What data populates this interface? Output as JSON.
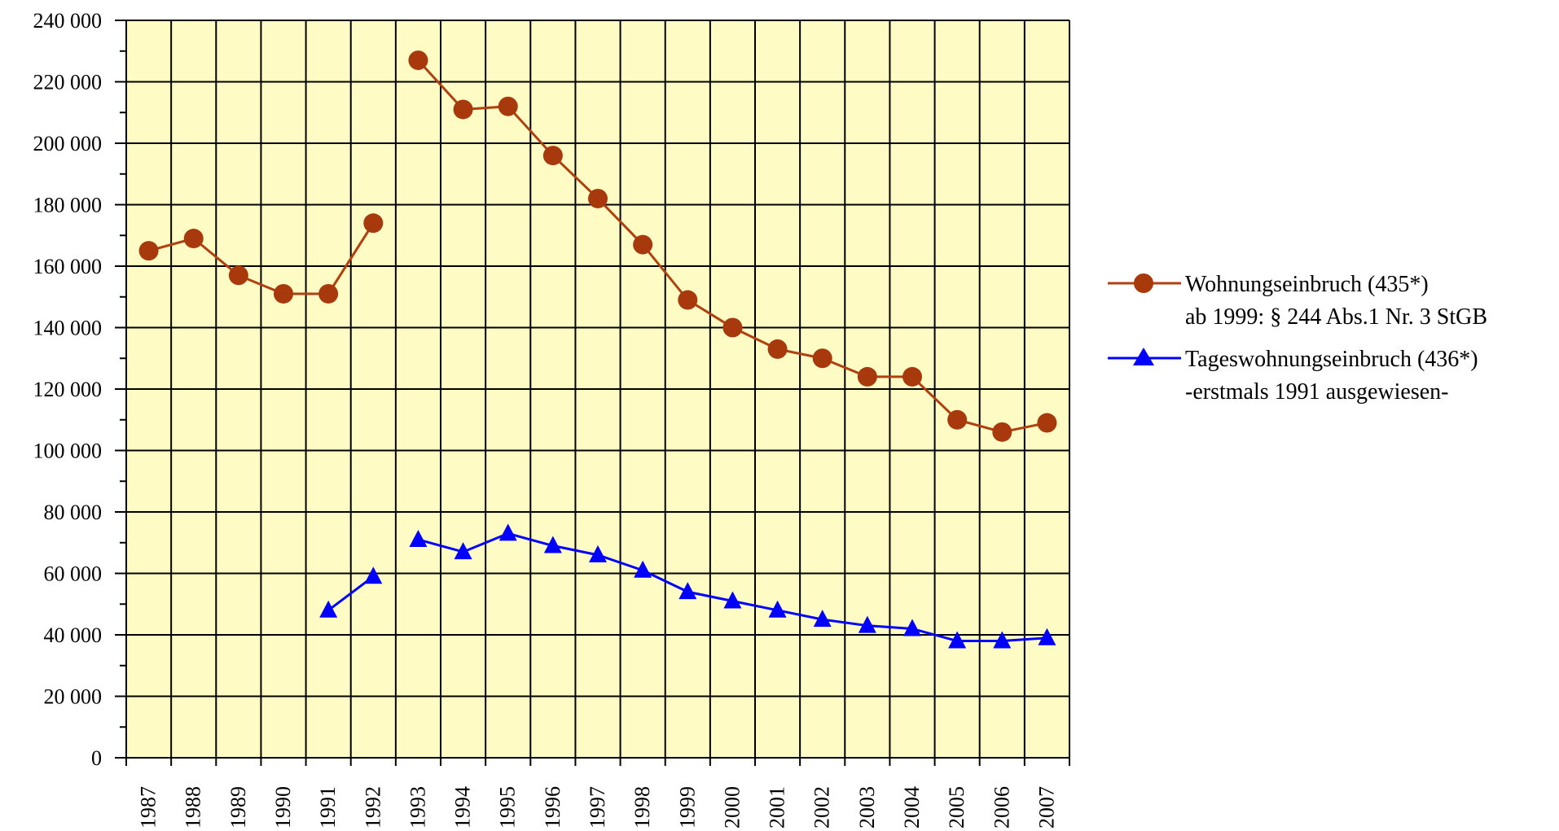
{
  "chart_data": {
    "type": "line",
    "title": "",
    "xlabel": "",
    "ylabel": "",
    "x": [
      1987,
      1988,
      1989,
      1990,
      1991,
      1992,
      1993,
      1994,
      1995,
      1996,
      1997,
      1998,
      1999,
      2000,
      2001,
      2002,
      2003,
      2004,
      2005,
      2006,
      2007
    ],
    "x_tick_labels": [
      "1987",
      "1988",
      "1989",
      "1990",
      "1991",
      "1992",
      "1993",
      "1994",
      "1995",
      "1996",
      "1997",
      "1998",
      "1999",
      "2000",
      "2001",
      "2002",
      "2003",
      "2004",
      "2005",
      "2006",
      "2007"
    ],
    "ylim": [
      0,
      240000
    ],
    "y_ticks": [
      0,
      20000,
      40000,
      60000,
      80000,
      100000,
      120000,
      140000,
      160000,
      180000,
      200000,
      220000,
      240000
    ],
    "y_tick_labels": [
      "0",
      "20 000",
      "40 000",
      "60 000",
      "80 000",
      "100 000",
      "120 000",
      "140 000",
      "160 000",
      "180 000",
      "200 000",
      "220 000",
      "240 000"
    ],
    "grid": true,
    "plot_background": "#fffbc4",
    "legend_position": "right",
    "series": [
      {
        "name": "Wohnungseinbruch (435*)",
        "name_line2": "ab 1999: § 244 Abs.1 Nr. 3 StGB",
        "color": "#b0400f",
        "marker_color": "#a8390c",
        "marker": "circle",
        "values": [
          165000,
          169000,
          157000,
          151000,
          151000,
          174000,
          227000,
          211000,
          212000,
          196000,
          182000,
          167000,
          149000,
          140000,
          133000,
          130000,
          124000,
          124000,
          110000,
          106000,
          109000
        ]
      },
      {
        "name": "Tageswohnungseinbruch (436*)",
        "name_line2": "-erstmals 1991 ausgewiesen-",
        "color": "#0000ff",
        "marker_color": "#0000ff",
        "marker": "triangle",
        "values": [
          null,
          null,
          null,
          null,
          48000,
          59000,
          71000,
          67000,
          73000,
          69000,
          66000,
          61000,
          54000,
          51000,
          48000,
          45000,
          43000,
          42000,
          38000,
          38000,
          39000
        ]
      }
    ]
  }
}
